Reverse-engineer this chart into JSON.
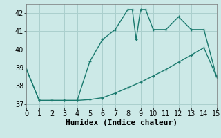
{
  "xlabel": "Humidex (Indice chaleur)",
  "xlim": [
    0,
    15
  ],
  "ylim": [
    36.8,
    42.5
  ],
  "yticks": [
    37,
    38,
    39,
    40,
    41,
    42
  ],
  "xticks": [
    0,
    1,
    2,
    3,
    4,
    5,
    6,
    7,
    8,
    9,
    10,
    11,
    12,
    13,
    14,
    15
  ],
  "bg_color": "#cce9e7",
  "grid_color": "#aacfcd",
  "line_color": "#1a7a6e",
  "line1_x": [
    0,
    1,
    2,
    3,
    4,
    5,
    6,
    7,
    8,
    9,
    10,
    11,
    12,
    13,
    14,
    15
  ],
  "line1_y": [
    38.9,
    37.2,
    37.2,
    37.2,
    37.2,
    37.25,
    37.35,
    37.6,
    37.9,
    38.2,
    38.55,
    38.9,
    39.3,
    39.7,
    40.1,
    38.5
  ],
  "line2_x": [
    0,
    1,
    2,
    3,
    4,
    5,
    6,
    7,
    8,
    8.35,
    8.65,
    9,
    9.4,
    10,
    11,
    12,
    13,
    14,
    15
  ],
  "line2_y": [
    38.9,
    37.2,
    37.2,
    37.2,
    37.2,
    39.35,
    40.55,
    41.1,
    42.2,
    42.2,
    40.55,
    42.2,
    42.2,
    41.1,
    41.1,
    41.8,
    41.1,
    41.1,
    38.5
  ],
  "marker_size": 3,
  "linewidth": 1.0,
  "font_size_label": 8,
  "font_size_tick": 7
}
